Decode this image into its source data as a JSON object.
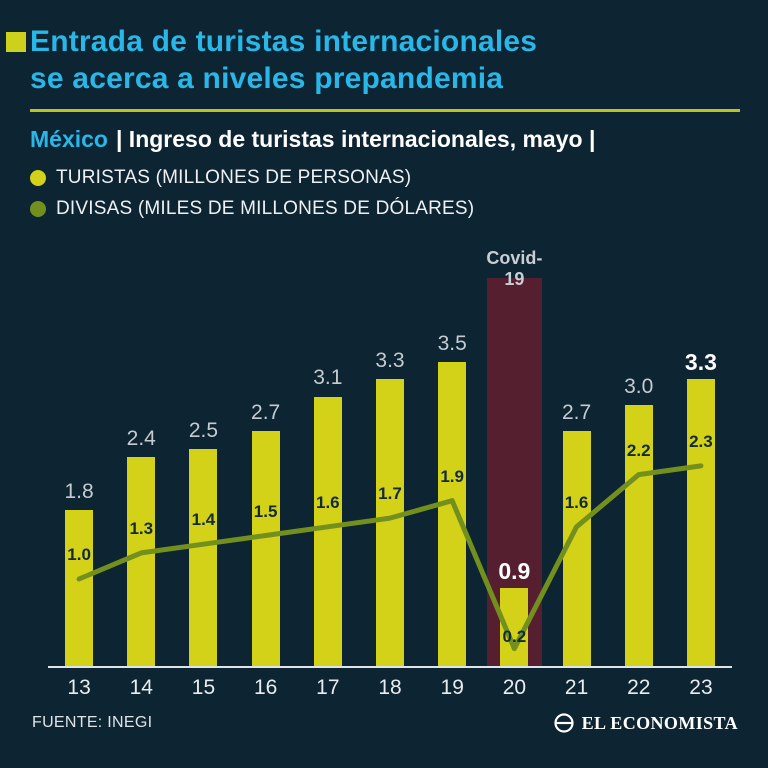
{
  "header": {
    "title_line1": "Entrada de turistas internacionales",
    "title_line2": "se acerca a niveles prepandemia",
    "subtitle_country": "México",
    "subtitle_rest": "| Ingreso de turistas internacionales, mayo |"
  },
  "legend": [
    {
      "label": "TURISTAS (MILLONES DE PERSONAS)",
      "color": "#d3d118"
    },
    {
      "label": "DIVISAS (MILES DE MILLONES DE DÓLARES)",
      "color": "#73901e"
    }
  ],
  "colors": {
    "background": "#0d2433",
    "title": "#29b7e8",
    "bar": "#d3d118",
    "line": "#73901e",
    "covid_band": "#561f2f",
    "divider": "#b9c41e"
  },
  "chart_data": {
    "type": "bar",
    "categories": [
      "13",
      "14",
      "15",
      "16",
      "17",
      "18",
      "19",
      "20",
      "21",
      "22",
      "23"
    ],
    "series": [
      {
        "name": "TURISTAS (MILLONES DE PERSONAS)",
        "type": "bar",
        "values": [
          1.8,
          2.4,
          2.5,
          2.7,
          3.1,
          3.3,
          3.5,
          0.9,
          2.7,
          3.0,
          3.3
        ]
      },
      {
        "name": "DIVISAS (MILES DE MILLONES DE DÓLARES)",
        "type": "line",
        "values": [
          1.0,
          1.3,
          1.4,
          1.5,
          1.6,
          1.7,
          1.9,
          0.2,
          1.6,
          2.2,
          2.3
        ]
      }
    ],
    "annotation": {
      "label": "Covid-19",
      "category": "20"
    },
    "bold_value_labels": [
      "20",
      "23"
    ],
    "ylim": [
      0,
      4
    ],
    "grid": false,
    "legend_position": "top-left"
  },
  "footer": {
    "source": "FUENTE: INEGI",
    "brand": "EL ECONOMISTA"
  }
}
